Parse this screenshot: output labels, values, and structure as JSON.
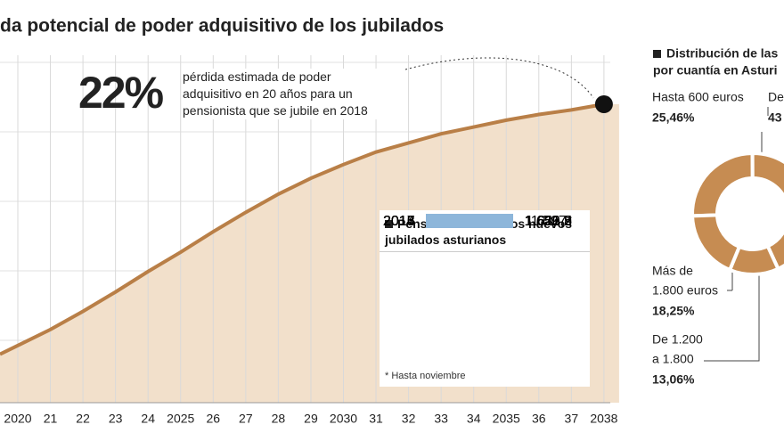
{
  "chart_data": [
    {
      "type": "area",
      "title": "da potencial de poder adquisitivo de los jubilados",
      "categories": [
        "2020",
        "21",
        "22",
        "23",
        "24",
        "2025",
        "26",
        "27",
        "28",
        "29",
        "2030",
        "31",
        "32",
        "33",
        "34",
        "2035",
        "36",
        "37",
        "2038"
      ],
      "values": [
        0.8,
        2.2,
        3.8,
        5.5,
        7.3,
        9.0,
        10.8,
        12.5,
        14.1,
        15.5,
        16.7,
        17.8,
        18.6,
        19.4,
        20.0,
        20.6,
        21.1,
        21.5,
        22
      ],
      "color": "#b97f47",
      "fill": "#f2e0cb",
      "ylim": [
        0,
        22
      ],
      "grid": true,
      "annotation": {
        "label": "22%",
        "text": "pérdida estimada de poder adquisitivo en 20 años para un pensionista que se jubile en 2018"
      }
    },
    {
      "type": "hbar",
      "title": "Pensión media de los nuevos jubilados asturianos",
      "categories": [
        "2013",
        "2014",
        "2015",
        "2016",
        "2017"
      ],
      "values": [
        1620.5,
        1626.9,
        1653.8,
        1611.2,
        1597
      ],
      "value_labels": [
        "1.620,5",
        "1.626,9",
        "1.653,8",
        "1.611,2",
        "1.597*"
      ],
      "color": "#8db6da",
      "xlim": [
        1550,
        1660
      ],
      "note": "* Hasta noviembre"
    },
    {
      "type": "donut",
      "title": [
        "Distribución de las",
        "por cuantía en Asturi"
      ],
      "categories": [
        [
          "Hasta 600 euros"
        ],
        [
          "De"
        ],
        [
          "De 1.200",
          "a 1.800"
        ],
        [
          "Más de",
          "1.800 euros"
        ]
      ],
      "values": [
        25.46,
        43.23,
        13.06,
        18.25
      ],
      "value_labels": [
        "25,46%",
        "43",
        "13,06%",
        "18,25%"
      ],
      "color": "#c68c52"
    }
  ]
}
